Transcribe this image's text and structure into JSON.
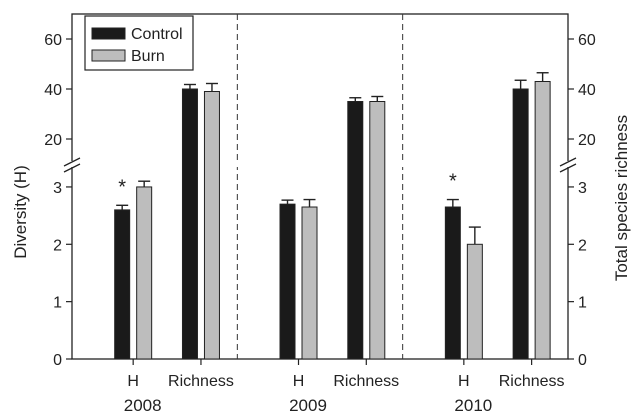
{
  "chart_data": {
    "type": "bar",
    "ylabel_left": "Diversity (H)",
    "ylabel_right": "Total species richness",
    "years": [
      "2008",
      "2009",
      "2010"
    ],
    "categories": [
      "H",
      "Richness"
    ],
    "series_names": [
      "Control",
      "Burn"
    ],
    "colors": {
      "Control": "#1a1a1a",
      "Burn": "#bdbdbd"
    },
    "broken_axis": true,
    "lower_axis": {
      "range": [
        0,
        3.4
      ],
      "ticks": [
        "0",
        "1",
        "2",
        "3"
      ]
    },
    "upper_axis": {
      "range": [
        10,
        70
      ],
      "ticks": [
        "20",
        "40",
        "60"
      ]
    },
    "groups": [
      {
        "year": "2008",
        "category": "H",
        "values": [
          2.6,
          3.0
        ],
        "errors": [
          0.08,
          0.1
        ],
        "annotation": "*"
      },
      {
        "year": "2008",
        "category": "Richness",
        "values": [
          40,
          39
        ],
        "errors": [
          1.8,
          3.2
        ],
        "annotation": ""
      },
      {
        "year": "2009",
        "category": "H",
        "values": [
          2.7,
          2.65
        ],
        "errors": [
          0.07,
          0.13
        ],
        "annotation": ""
      },
      {
        "year": "2009",
        "category": "Richness",
        "values": [
          35,
          35
        ],
        "errors": [
          1.5,
          2.0
        ],
        "annotation": ""
      },
      {
        "year": "2010",
        "category": "H",
        "values": [
          2.65,
          2.0
        ],
        "errors": [
          0.13,
          0.3
        ],
        "annotation": "*"
      },
      {
        "year": "2010",
        "category": "Richness",
        "values": [
          40,
          43
        ],
        "errors": [
          3.5,
          3.5
        ],
        "annotation": ""
      }
    ],
    "legend_position": "top-left"
  }
}
